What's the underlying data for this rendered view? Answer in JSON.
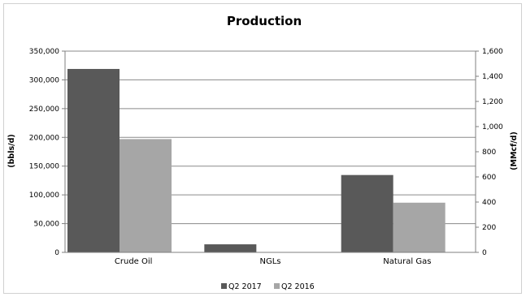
{
  "chart_data": {
    "type": "bar",
    "title": "Production",
    "categories": [
      "Crude Oil",
      "NGLs",
      "Natural Gas"
    ],
    "series": [
      {
        "name": "Q2 2017",
        "color": "#595959",
        "axis": [
          "left",
          "left",
          "right"
        ],
        "values": [
          319000,
          14000,
          615
        ]
      },
      {
        "name": "Q2 2016",
        "color": "#a6a6a6",
        "axis": [
          "left",
          "left",
          "right"
        ],
        "values": [
          197000,
          null,
          395
        ]
      }
    ],
    "y_left": {
      "label": "(bbls/d)",
      "range": [
        0,
        350000
      ],
      "ticks": [
        "0",
        "50,000",
        "100,000",
        "150,000",
        "200,000",
        "250,000",
        "300,000",
        "350,000"
      ]
    },
    "y_right": {
      "label": "(MMcf/d)",
      "range": [
        0,
        1600
      ],
      "ticks": [
        "0",
        "200",
        "400",
        "600",
        "800",
        "1,000",
        "1,200",
        "1,400",
        "1,600"
      ]
    },
    "grid": true,
    "legend": "bottom"
  }
}
